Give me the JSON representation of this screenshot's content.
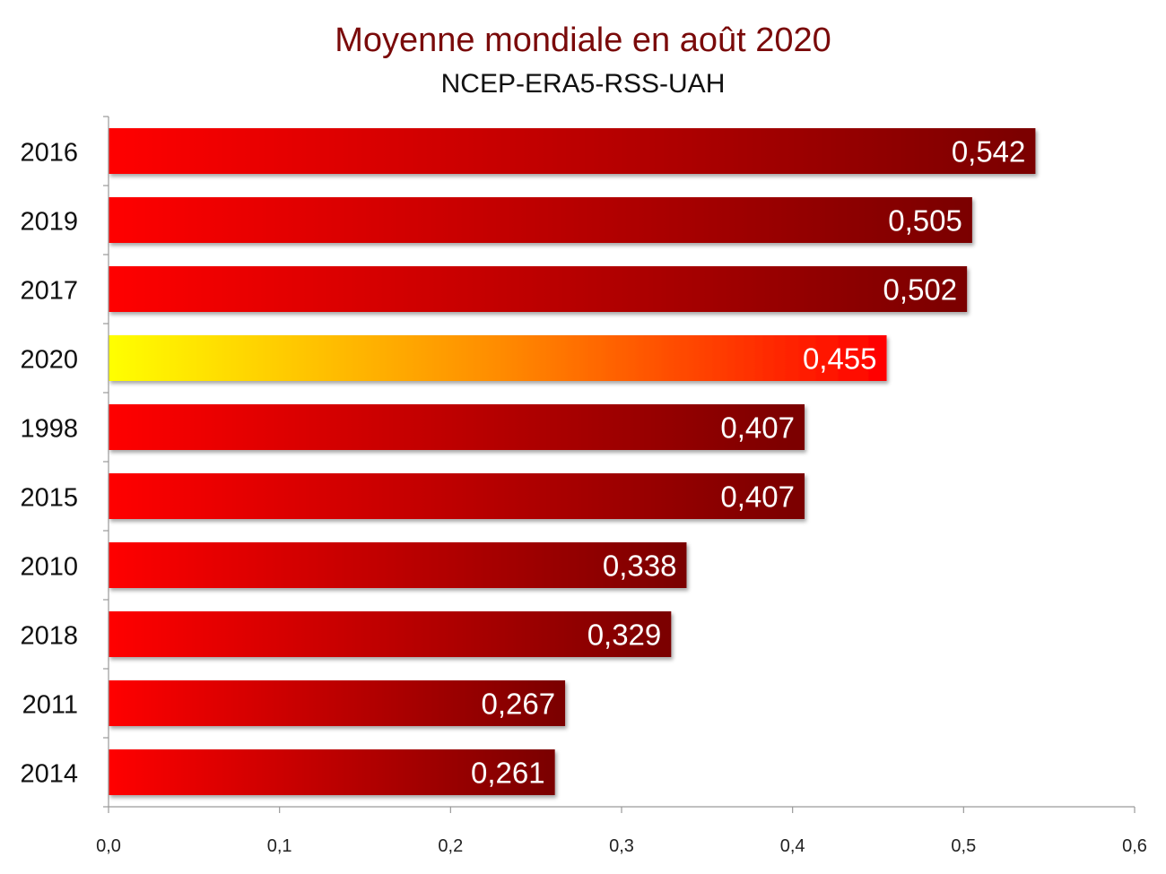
{
  "chart_data": {
    "type": "bar",
    "orientation": "horizontal",
    "title": "Moyenne mondiale en août 2020",
    "subtitle": "NCEP-ERA5-RSS-UAH",
    "xlabel": "",
    "ylabel": "",
    "categories": [
      "2016",
      "2019",
      "2017",
      "2020",
      "1998",
      "2015",
      "2010",
      "2018",
      "2011",
      "2014"
    ],
    "values": [
      0.542,
      0.505,
      0.502,
      0.455,
      0.407,
      0.407,
      0.338,
      0.329,
      0.267,
      0.261
    ],
    "value_labels": [
      "0,542",
      "0,505",
      "0,502",
      "0,455",
      "0,407",
      "0,407",
      "0,338",
      "0,329",
      "0,267",
      "0,261"
    ],
    "highlight_category": "2020",
    "xlim": [
      0,
      0.6
    ],
    "xticks": [
      0,
      0.1,
      0.2,
      0.3,
      0.4,
      0.5,
      0.6
    ],
    "xtick_labels": [
      "0,0",
      "0,1",
      "0,2",
      "0,3",
      "0,4",
      "0,5",
      "0,6"
    ],
    "grid": false,
    "colors": {
      "bar_start": "#ff0000",
      "bar_end": "#7a0000",
      "highlight_start": "#ffff00",
      "highlight_mid": "#ff8c00",
      "highlight_end": "#ff0000",
      "title": "#7a0a0a"
    }
  }
}
